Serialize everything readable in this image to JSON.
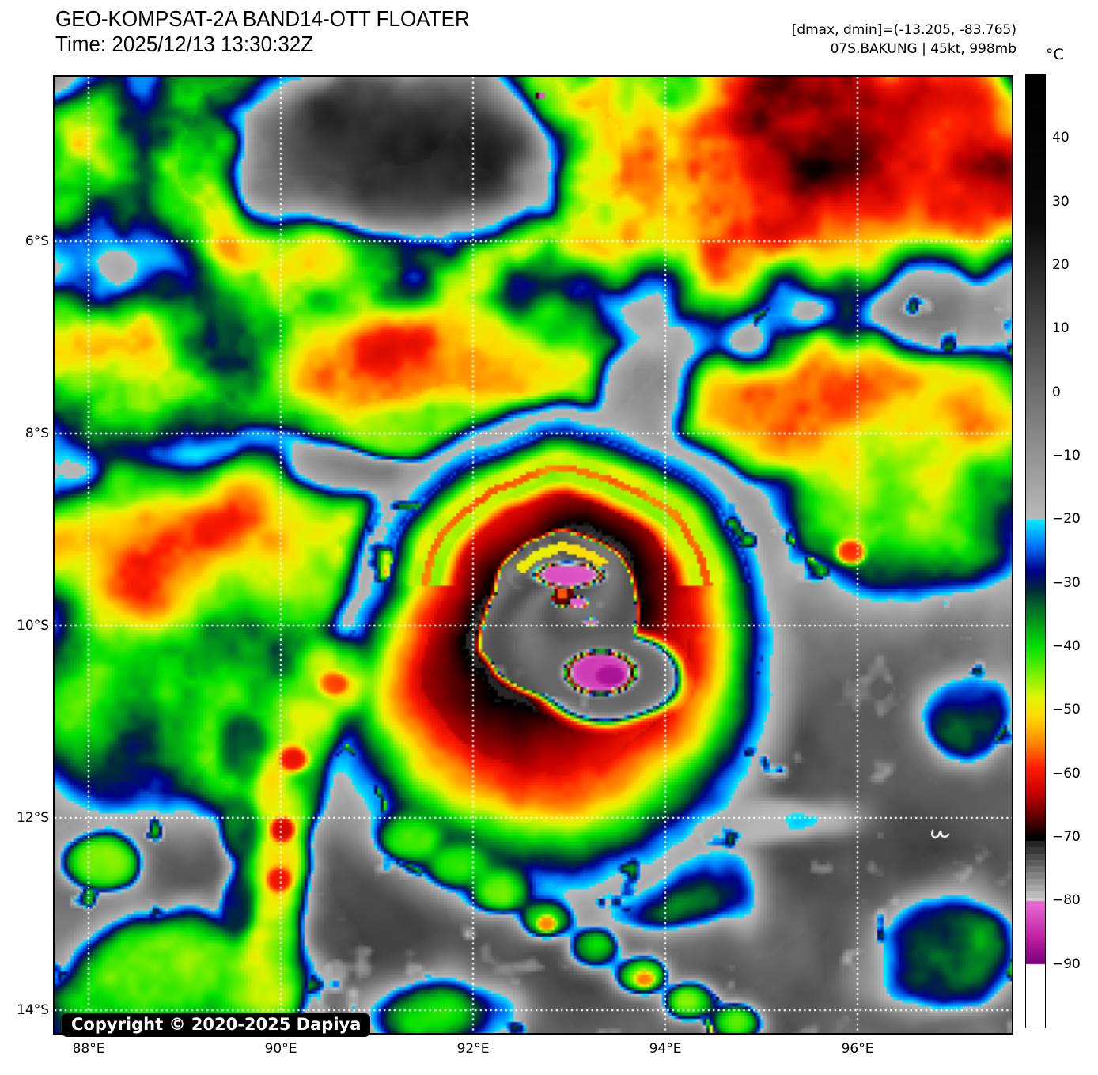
{
  "header": {
    "title": "GEO-KOMPSAT-2A BAND14-OTT FLOATER",
    "time": "Time: 2025/12/13 13:30:32Z",
    "range_info": "[dmax, dmin]=(-13.205, -83.765)",
    "storm_info": "07S.BAKUNG | 45kt, 998mb"
  },
  "map": {
    "copyright": "Copyright © 2020-2025 Dapiya",
    "lon_ticks": [
      {
        "label": "88°E",
        "deg": 88
      },
      {
        "label": "90°E",
        "deg": 90
      },
      {
        "label": "92°E",
        "deg": 92
      },
      {
        "label": "94°E",
        "deg": 94
      },
      {
        "label": "96°E",
        "deg": 96
      }
    ],
    "lat_ticks": [
      {
        "label": "6°S",
        "deg": 6
      },
      {
        "label": "8°S",
        "deg": 8
      },
      {
        "label": "10°S",
        "deg": 10
      },
      {
        "label": "12°S",
        "deg": 12
      },
      {
        "label": "14°S",
        "deg": 14
      }
    ],
    "grid_color": "#ffffff",
    "frame_color": "#000000"
  },
  "colorbar": {
    "unit": "°C",
    "min": -100,
    "max": 50,
    "ticks": [
      {
        "label": "40",
        "value": 40
      },
      {
        "label": "30",
        "value": 30
      },
      {
        "label": "20",
        "value": 20
      },
      {
        "label": "10",
        "value": 10
      },
      {
        "label": "0",
        "value": 0
      },
      {
        "label": "−10",
        "value": -10
      },
      {
        "label": "−20",
        "value": -20
      },
      {
        "label": "−30",
        "value": -30
      },
      {
        "label": "−40",
        "value": -40
      },
      {
        "label": "−50",
        "value": -50
      },
      {
        "label": "−60",
        "value": -60
      },
      {
        "label": "−70",
        "value": -70
      },
      {
        "label": "−80",
        "value": -80
      },
      {
        "label": "−90",
        "value": -90
      }
    ],
    "palette_stops": [
      [
        50,
        "#000000"
      ],
      [
        27,
        "#0a0a0a"
      ],
      [
        -19.98,
        "#bababa"
      ],
      [
        -20,
        "#00f0ff"
      ],
      [
        -24,
        "#0078ff"
      ],
      [
        -28,
        "#00008c"
      ],
      [
        -31,
        "#002838"
      ],
      [
        -34,
        "#006e28"
      ],
      [
        -40,
        "#00e100"
      ],
      [
        -44,
        "#6ef000"
      ],
      [
        -48,
        "#e1f500"
      ],
      [
        -51,
        "#ffdc00"
      ],
      [
        -55,
        "#ff8c00"
      ],
      [
        -59,
        "#ff1e00"
      ],
      [
        -63,
        "#c80000"
      ],
      [
        -67,
        "#5a0000"
      ],
      [
        -70,
        "#000000"
      ],
      [
        -70.02,
        "#141414"
      ],
      [
        -80,
        "#cdcdcd"
      ],
      [
        -80.02,
        "#eb6ed7"
      ],
      [
        -86,
        "#be1ea0"
      ],
      [
        -90,
        "#780078"
      ],
      [
        -90.02,
        "#ffffff"
      ],
      [
        -100,
        "#ffffff"
      ]
    ]
  },
  "badge_colors": {
    "bg": "#000000",
    "text": "#ffffff"
  }
}
